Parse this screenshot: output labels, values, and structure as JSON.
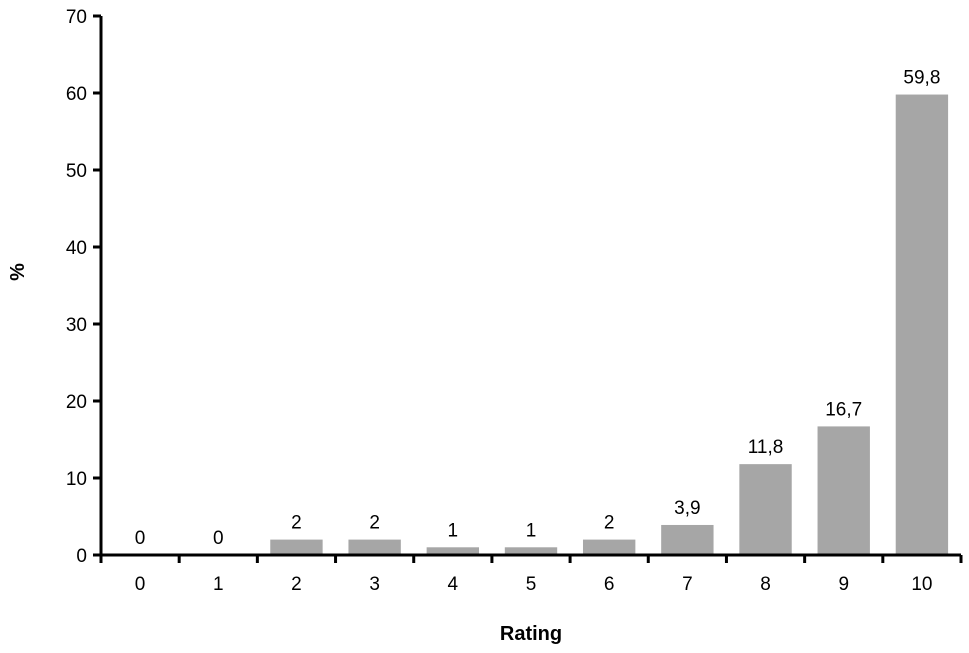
{
  "chart_data": {
    "type": "bar",
    "categories": [
      "0",
      "1",
      "2",
      "3",
      "4",
      "5",
      "6",
      "7",
      "8",
      "9",
      "10"
    ],
    "values": [
      0,
      0,
      2,
      2,
      1,
      1,
      2,
      3.9,
      11.8,
      16.7,
      59.8
    ],
    "data_labels": [
      "0",
      "0",
      "2",
      "2",
      "1",
      "1",
      "2",
      "3,9",
      "11,8",
      "16,7",
      "59,8"
    ],
    "xlabel": "Rating",
    "ylabel": "%",
    "ylim": [
      0,
      70
    ],
    "yticks": [
      0,
      10,
      20,
      30,
      40,
      50,
      60,
      70
    ],
    "grid": false,
    "legend": "none",
    "bar_color": "#a6a6a6",
    "axis_color": "#000000"
  }
}
